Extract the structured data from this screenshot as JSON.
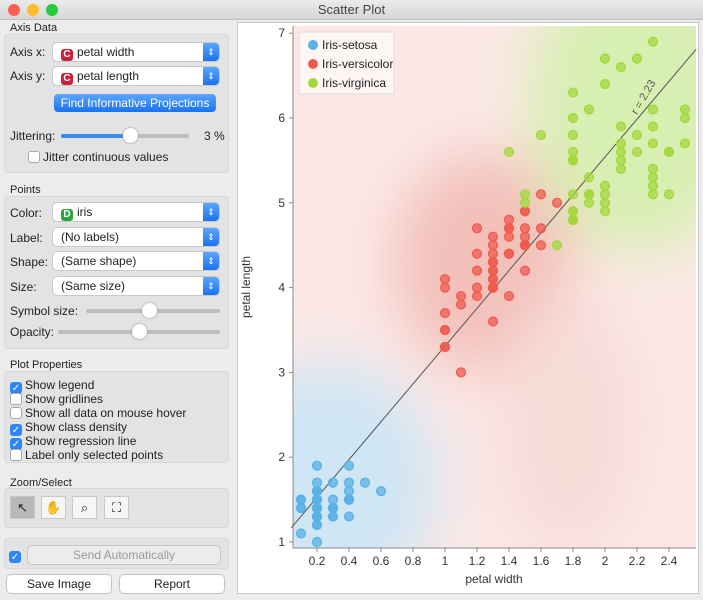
{
  "window": {
    "title": "Scatter Plot"
  },
  "axis_data": {
    "title": "Axis Data",
    "axis_x_label": "Axis x:",
    "axis_x_value": "petal width",
    "axis_y_label": "Axis y:",
    "axis_y_value": "petal length",
    "var_badge": "C",
    "find_button": "Find Informative Projections",
    "jitter_label": "Jittering:",
    "jitter_value": "3 %",
    "jitter_fraction": 0.55,
    "jitter_continuous": "Jitter continuous values"
  },
  "points": {
    "title": "Points",
    "color_label": "Color:",
    "color_value": "iris",
    "color_badge": "D",
    "label_label": "Label:",
    "label_value": "(No labels)",
    "shape_label": "Shape:",
    "shape_value": "(Same shape)",
    "size_label": "Size:",
    "size_value": "(Same size)",
    "symbol_size_label": "Symbol size:",
    "symbol_size_fraction": 0.5,
    "opacity_label": "Opacity:",
    "opacity_fraction": 0.5
  },
  "plot_properties": {
    "title": "Plot Properties",
    "options": [
      {
        "label": "Show legend",
        "checked": true
      },
      {
        "label": "Show gridlines",
        "checked": false
      },
      {
        "label": "Show all data on mouse hover",
        "checked": false
      },
      {
        "label": "Show class density",
        "checked": true
      },
      {
        "label": "Show regression line",
        "checked": true
      },
      {
        "label": "Label only selected points",
        "checked": false
      }
    ]
  },
  "zoom_select": {
    "title": "Zoom/Select",
    "tools": [
      "pointer-icon",
      "hand-icon",
      "magnifier-icon",
      "fit-icon"
    ]
  },
  "send": {
    "label": "Send Automatically",
    "checked": true
  },
  "buttons": {
    "save": "Save Image",
    "report": "Report"
  },
  "chart_data": {
    "type": "scatter",
    "xlabel": "petal width",
    "ylabel": "petal length",
    "xlim": [
      0,
      2.57
    ],
    "ylim": [
      0.9,
      7.1
    ],
    "xticks": [
      "0.2",
      "0.4",
      "0.6",
      "0.8",
      "1",
      "1.2",
      "1.4",
      "1.6",
      "1.8",
      "2",
      "2.2",
      "2.4"
    ],
    "yticks": [
      "1",
      "2",
      "3",
      "4",
      "5",
      "6",
      "7"
    ],
    "regression": {
      "label": "r = 2.23",
      "slope": 2.23,
      "intercept": 1.08
    },
    "legend": {
      "placement": "top-left"
    },
    "series": [
      {
        "name": "Iris-setosa",
        "color": "#5ab1e6",
        "points": [
          [
            0.2,
            1.4
          ],
          [
            0.2,
            1.4
          ],
          [
            0.2,
            1.3
          ],
          [
            0.2,
            1.5
          ],
          [
            0.2,
            1.4
          ],
          [
            0.4,
            1.7
          ],
          [
            0.3,
            1.4
          ],
          [
            0.2,
            1.5
          ],
          [
            0.2,
            1.4
          ],
          [
            0.1,
            1.5
          ],
          [
            0.2,
            1.5
          ],
          [
            0.2,
            1.6
          ],
          [
            0.1,
            1.4
          ],
          [
            0.1,
            1.1
          ],
          [
            0.2,
            1.2
          ],
          [
            0.4,
            1.5
          ],
          [
            0.4,
            1.3
          ],
          [
            0.3,
            1.4
          ],
          [
            0.3,
            1.7
          ],
          [
            0.3,
            1.5
          ],
          [
            0.2,
            1.7
          ],
          [
            0.4,
            1.5
          ],
          [
            0.2,
            1.0
          ],
          [
            0.5,
            1.7
          ],
          [
            0.2,
            1.9
          ],
          [
            0.2,
            1.6
          ],
          [
            0.4,
            1.6
          ],
          [
            0.2,
            1.5
          ],
          [
            0.2,
            1.4
          ],
          [
            0.2,
            1.6
          ],
          [
            0.2,
            1.6
          ],
          [
            0.4,
            1.5
          ],
          [
            0.1,
            1.5
          ],
          [
            0.2,
            1.4
          ],
          [
            0.2,
            1.5
          ],
          [
            0.2,
            1.2
          ],
          [
            0.2,
            1.3
          ],
          [
            0.1,
            1.4
          ],
          [
            0.2,
            1.3
          ],
          [
            0.2,
            1.5
          ],
          [
            0.3,
            1.3
          ],
          [
            0.3,
            1.3
          ],
          [
            0.2,
            1.3
          ],
          [
            0.6,
            1.6
          ],
          [
            0.4,
            1.9
          ],
          [
            0.3,
            1.4
          ],
          [
            0.2,
            1.6
          ],
          [
            0.2,
            1.4
          ],
          [
            0.2,
            1.5
          ],
          [
            0.2,
            1.4
          ]
        ]
      },
      {
        "name": "Iris-versicolor",
        "color": "#ef5b4f",
        "points": [
          [
            1.4,
            4.7
          ],
          [
            1.5,
            4.5
          ],
          [
            1.5,
            4.9
          ],
          [
            1.3,
            4.0
          ],
          [
            1.5,
            4.6
          ],
          [
            1.3,
            4.5
          ],
          [
            1.6,
            4.7
          ],
          [
            1.0,
            3.3
          ],
          [
            1.3,
            4.6
          ],
          [
            1.4,
            3.9
          ],
          [
            1.0,
            3.5
          ],
          [
            1.5,
            4.2
          ],
          [
            1.0,
            4.0
          ],
          [
            1.4,
            4.7
          ],
          [
            1.3,
            3.6
          ],
          [
            1.4,
            4.4
          ],
          [
            1.5,
            4.5
          ],
          [
            1.0,
            4.1
          ],
          [
            1.5,
            4.5
          ],
          [
            1.1,
            3.9
          ],
          [
            1.8,
            4.8
          ],
          [
            1.3,
            4.0
          ],
          [
            1.5,
            4.9
          ],
          [
            1.2,
            4.7
          ],
          [
            1.3,
            4.3
          ],
          [
            1.4,
            4.4
          ],
          [
            1.4,
            4.8
          ],
          [
            1.7,
            5.0
          ],
          [
            1.5,
            4.5
          ],
          [
            1.0,
            3.5
          ],
          [
            1.1,
            3.8
          ],
          [
            1.0,
            3.7
          ],
          [
            1.2,
            3.9
          ],
          [
            1.6,
            5.1
          ],
          [
            1.5,
            4.5
          ],
          [
            1.6,
            4.5
          ],
          [
            1.5,
            4.7
          ],
          [
            1.3,
            4.4
          ],
          [
            1.3,
            4.1
          ],
          [
            1.3,
            4.0
          ],
          [
            1.2,
            4.4
          ],
          [
            1.4,
            4.6
          ],
          [
            1.2,
            4.0
          ],
          [
            1.0,
            3.3
          ],
          [
            1.3,
            4.2
          ],
          [
            1.2,
            4.2
          ],
          [
            1.3,
            4.2
          ],
          [
            1.3,
            4.3
          ],
          [
            1.1,
            3.0
          ],
          [
            1.3,
            4.1
          ]
        ]
      },
      {
        "name": "Iris-virginica",
        "color": "#a3d83c",
        "points": [
          [
            2.5,
            6.0
          ],
          [
            1.9,
            5.1
          ],
          [
            2.1,
            5.9
          ],
          [
            1.8,
            5.6
          ],
          [
            2.2,
            5.8
          ],
          [
            2.1,
            6.6
          ],
          [
            1.7,
            4.5
          ],
          [
            1.8,
            6.3
          ],
          [
            1.8,
            5.8
          ],
          [
            2.5,
            6.1
          ],
          [
            2.0,
            5.1
          ],
          [
            1.9,
            5.3
          ],
          [
            2.1,
            5.5
          ],
          [
            2.0,
            5.0
          ],
          [
            2.4,
            5.1
          ],
          [
            2.3,
            5.3
          ],
          [
            1.8,
            5.5
          ],
          [
            2.2,
            6.7
          ],
          [
            2.3,
            6.9
          ],
          [
            1.5,
            5.0
          ],
          [
            2.3,
            5.7
          ],
          [
            2.0,
            4.9
          ],
          [
            2.0,
            6.7
          ],
          [
            1.8,
            4.9
          ],
          [
            2.1,
            5.7
          ],
          [
            1.8,
            6.0
          ],
          [
            1.8,
            4.8
          ],
          [
            1.8,
            4.9
          ],
          [
            2.1,
            5.6
          ],
          [
            1.6,
            5.8
          ],
          [
            1.9,
            6.1
          ],
          [
            2.0,
            6.4
          ],
          [
            2.2,
            5.6
          ],
          [
            1.5,
            5.1
          ],
          [
            1.4,
            5.6
          ],
          [
            2.3,
            6.1
          ],
          [
            2.4,
            5.6
          ],
          [
            1.8,
            5.5
          ],
          [
            1.8,
            4.8
          ],
          [
            2.1,
            5.4
          ],
          [
            2.4,
            5.6
          ],
          [
            2.3,
            5.1
          ],
          [
            1.9,
            5.1
          ],
          [
            2.3,
            5.9
          ],
          [
            2.5,
            5.7
          ],
          [
            2.3,
            5.2
          ],
          [
            1.9,
            5.0
          ],
          [
            2.0,
            5.2
          ],
          [
            2.3,
            5.4
          ],
          [
            1.8,
            5.1
          ]
        ]
      }
    ]
  }
}
